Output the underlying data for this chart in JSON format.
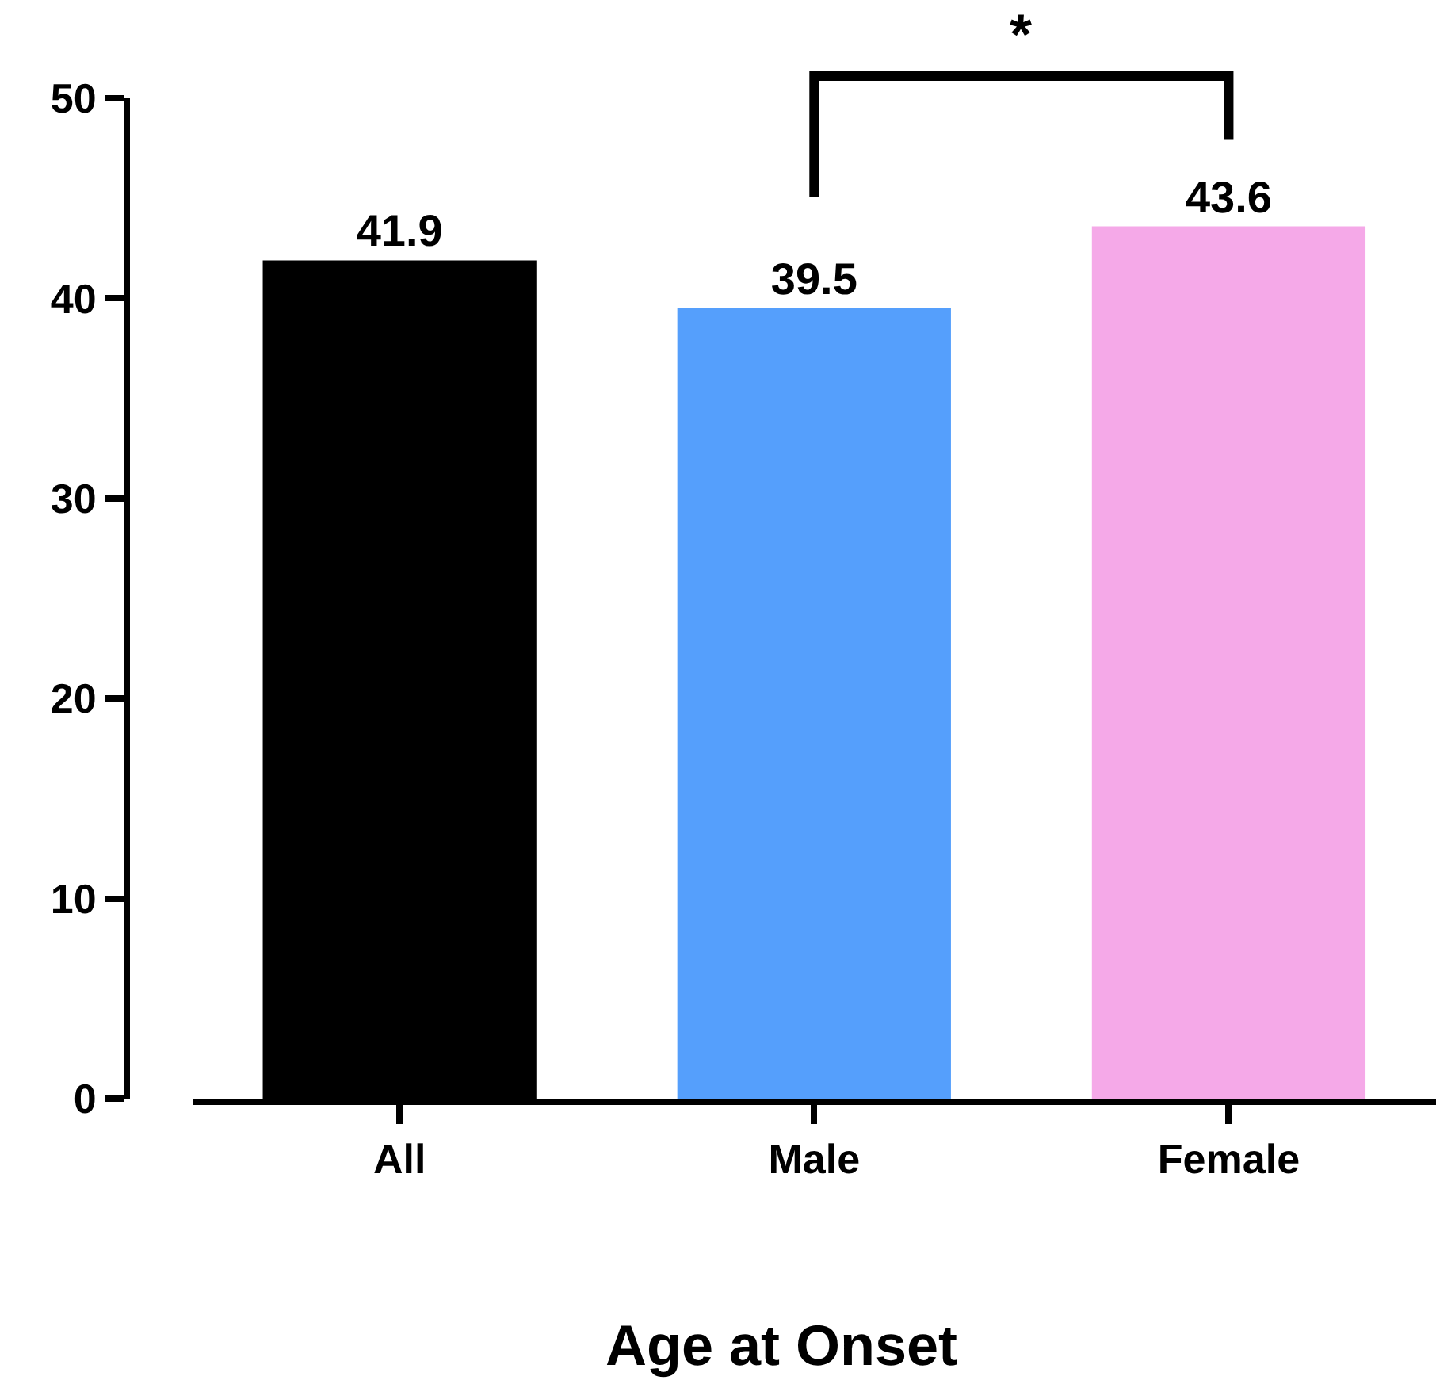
{
  "chart_data": {
    "type": "bar",
    "xlabel": "Age at Onset",
    "categories": [
      "All",
      "Male",
      "Female"
    ],
    "values": [
      41.9,
      39.5,
      43.6
    ],
    "colors": [
      "#000000",
      "#559ffc",
      "#f5a9e8"
    ],
    "ylim": [
      0,
      50
    ],
    "yticks": [
      0,
      10,
      20,
      30,
      40,
      50
    ],
    "grid": false,
    "data_labels": true,
    "annotations": [
      "*"
    ]
  }
}
